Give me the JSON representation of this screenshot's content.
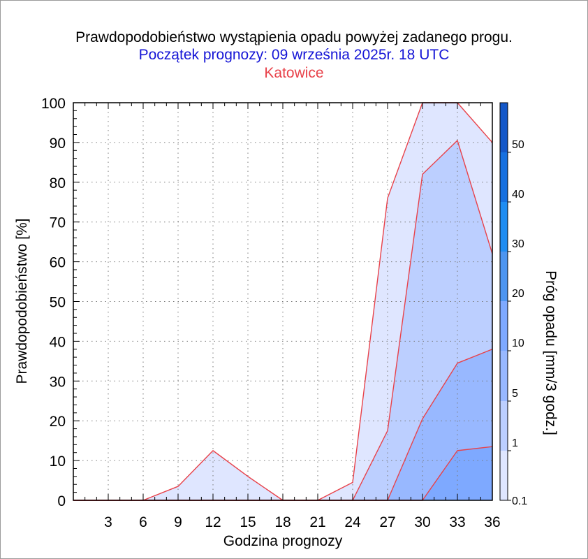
{
  "chart_data": {
    "type": "area",
    "title": "Prawdopodobieństwo wystąpienia opadu powyżej zadanego progu.",
    "subtitle": "Początek prognozy: 09 września 2025r. 18 UTC",
    "location": "Katowice",
    "xlabel": "Godzina prognozy",
    "ylabel": "Prawdopodobieństwo [%]",
    "xlim": [
      0,
      36
    ],
    "ylim": [
      0,
      100
    ],
    "x_ticks": [
      3,
      6,
      9,
      12,
      15,
      18,
      21,
      24,
      27,
      30,
      33,
      36
    ],
    "y_ticks": [
      0,
      10,
      20,
      30,
      40,
      50,
      60,
      70,
      80,
      90,
      100
    ],
    "x": [
      0,
      3,
      6,
      9,
      12,
      15,
      18,
      21,
      24,
      27,
      30,
      33,
      36
    ],
    "series": [
      {
        "threshold": 0.1,
        "values": [
          0,
          0,
          0,
          3.5,
          12.5,
          6,
          0,
          0,
          4.5,
          76,
          100,
          100,
          90
        ]
      },
      {
        "threshold": 1,
        "values": [
          0,
          0,
          0,
          0,
          0,
          0,
          0,
          0,
          0,
          17.5,
          82,
          90.5,
          62
        ]
      },
      {
        "threshold": 5,
        "values": [
          0,
          0,
          0,
          0,
          0,
          0,
          0,
          0,
          0,
          0,
          20.5,
          34.5,
          38
        ]
      },
      {
        "threshold": 10,
        "values": [
          0,
          0,
          0,
          0,
          0,
          0,
          0,
          0,
          0,
          0,
          0,
          12.5,
          13.5
        ]
      }
    ],
    "colorbar": {
      "label": "Próg opadu [mm/3 godz.]",
      "levels": [
        "0.1",
        "1",
        "5",
        "10",
        "20",
        "30",
        "40",
        "50"
      ],
      "colors": [
        "#dfe6ff",
        "#bccfff",
        "#98b8ff",
        "#7ea9ff",
        "#4d95f0",
        "#1f8df2",
        "#1670e0",
        "#1357c8",
        "#0e3fa4"
      ]
    },
    "colors": {
      "fills": [
        "#dfe6ff",
        "#bccfff",
        "#98b8ff",
        "#7ea9ff"
      ],
      "contour_line": "#e8424a",
      "grid": "#7a7a7a"
    },
    "grid": true
  }
}
